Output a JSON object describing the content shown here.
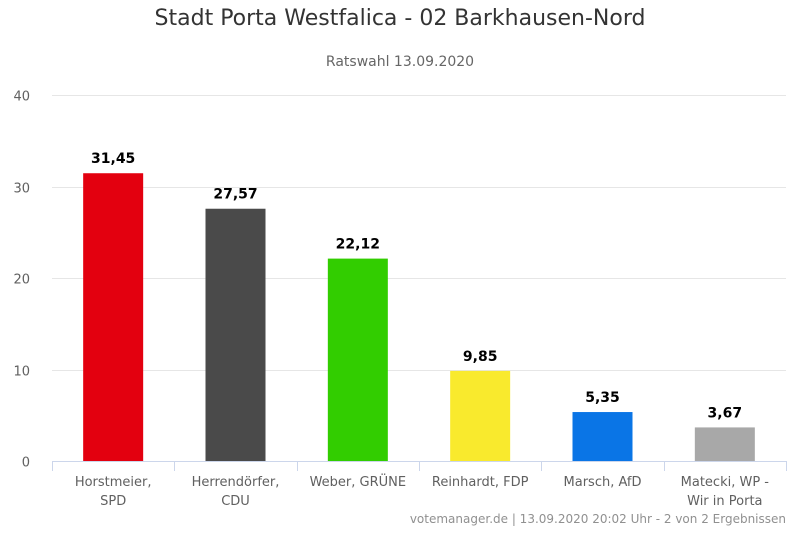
{
  "chart_data": {
    "type": "bar",
    "title": "Stadt Porta Westfalica - 02 Barkhausen-Nord",
    "subtitle": "Ratswahl 13.09.2020",
    "categories": [
      [
        "Horstmeier,",
        "SPD"
      ],
      [
        "Herrendörfer,",
        "CDU"
      ],
      [
        "Weber, GRÜNE"
      ],
      [
        "Reinhardt, FDP"
      ],
      [
        "Marsch, AfD"
      ],
      [
        "Matecki, WP -",
        "Wir in Porta"
      ]
    ],
    "values": [
      31.45,
      27.57,
      22.12,
      9.85,
      5.35,
      3.67
    ],
    "value_labels": [
      "31,45",
      "27,57",
      "22,12",
      "9,85",
      "5,35",
      "3,67"
    ],
    "colors": [
      "#e3000f",
      "#4a4a4a",
      "#32cd00",
      "#f9ea2d",
      "#0a75e6",
      "#a8a8a8"
    ],
    "ylim": [
      0,
      40
    ],
    "yticks": [
      0,
      10,
      20,
      30,
      40
    ],
    "grid": true,
    "legend": "none"
  },
  "credits": "votemanager.de | 13.09.2020 20:02 Uhr - 2 von 2 Ergebnissen"
}
